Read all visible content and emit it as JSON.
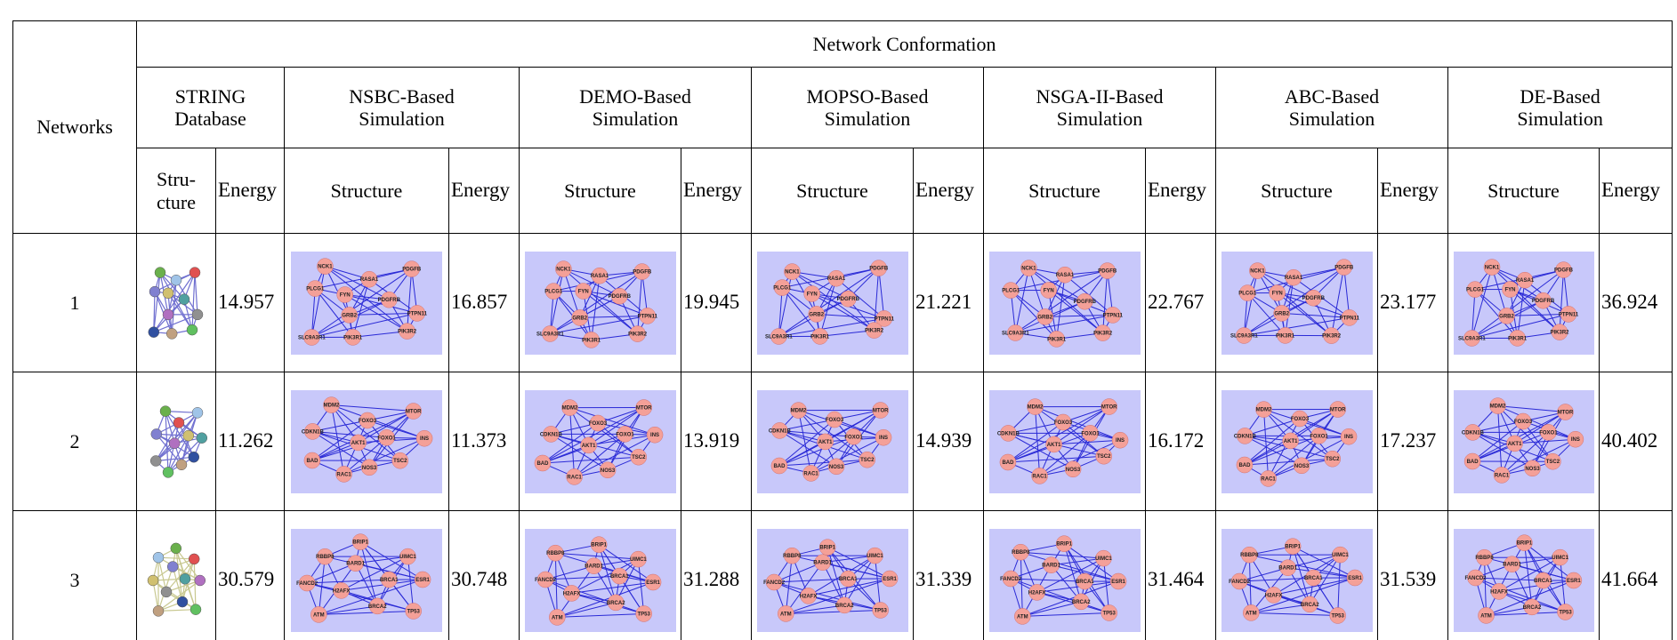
{
  "header": {
    "networks": "Networks",
    "group": "Network Conformation",
    "string_db": "STRING Database",
    "methods": [
      "NSBC-Based Simulation",
      "DEMO-Based Simulation",
      "MOPSO-Based Simulation",
      "NSGA-II-Based Simulation",
      "ABC-Based Simulation",
      "DE-Based Simulation"
    ],
    "structure": "Structure",
    "structure_short": "Stru-cture",
    "energy": "Energy"
  },
  "rows": [
    {
      "network": "1",
      "string_energy": "14.957",
      "energies": [
        "16.857",
        "19.945",
        "21.221",
        "22.767",
        "23.177",
        "36.924"
      ]
    },
    {
      "network": "2",
      "string_energy": "11.262",
      "energies": [
        "11.373",
        "13.919",
        "14.939",
        "16.172",
        "17.237",
        "40.402"
      ]
    },
    {
      "network": "3",
      "string_energy": "30.579",
      "energies": [
        "30.748",
        "31.288",
        "31.339",
        "31.464",
        "31.539",
        "41.664"
      ]
    }
  ],
  "graphs": [
    {
      "nodes": [
        "NCK1",
        "RASA1",
        "PDGFB",
        "PLCG1",
        "FYN",
        "PDGFRB",
        "GRB2",
        "PTPN11",
        "SLC9A3R1",
        "PIK3R1",
        "PIK3R2"
      ]
    },
    {
      "nodes": [
        "MDM2",
        "MTOR",
        "FOXO3",
        "CDKN1B",
        "FOXO1",
        "INS",
        "AKT1",
        "BAD",
        "TSC2",
        "NOS3",
        "RAC1"
      ]
    },
    {
      "nodes": [
        "BRIP1",
        "RBBP8",
        "UIMC1",
        "BARD1",
        "FANCD2",
        "BRCA1",
        "ESR1",
        "H2AFX",
        "BRCA2",
        "ATM",
        "TP53"
      ]
    }
  ]
}
